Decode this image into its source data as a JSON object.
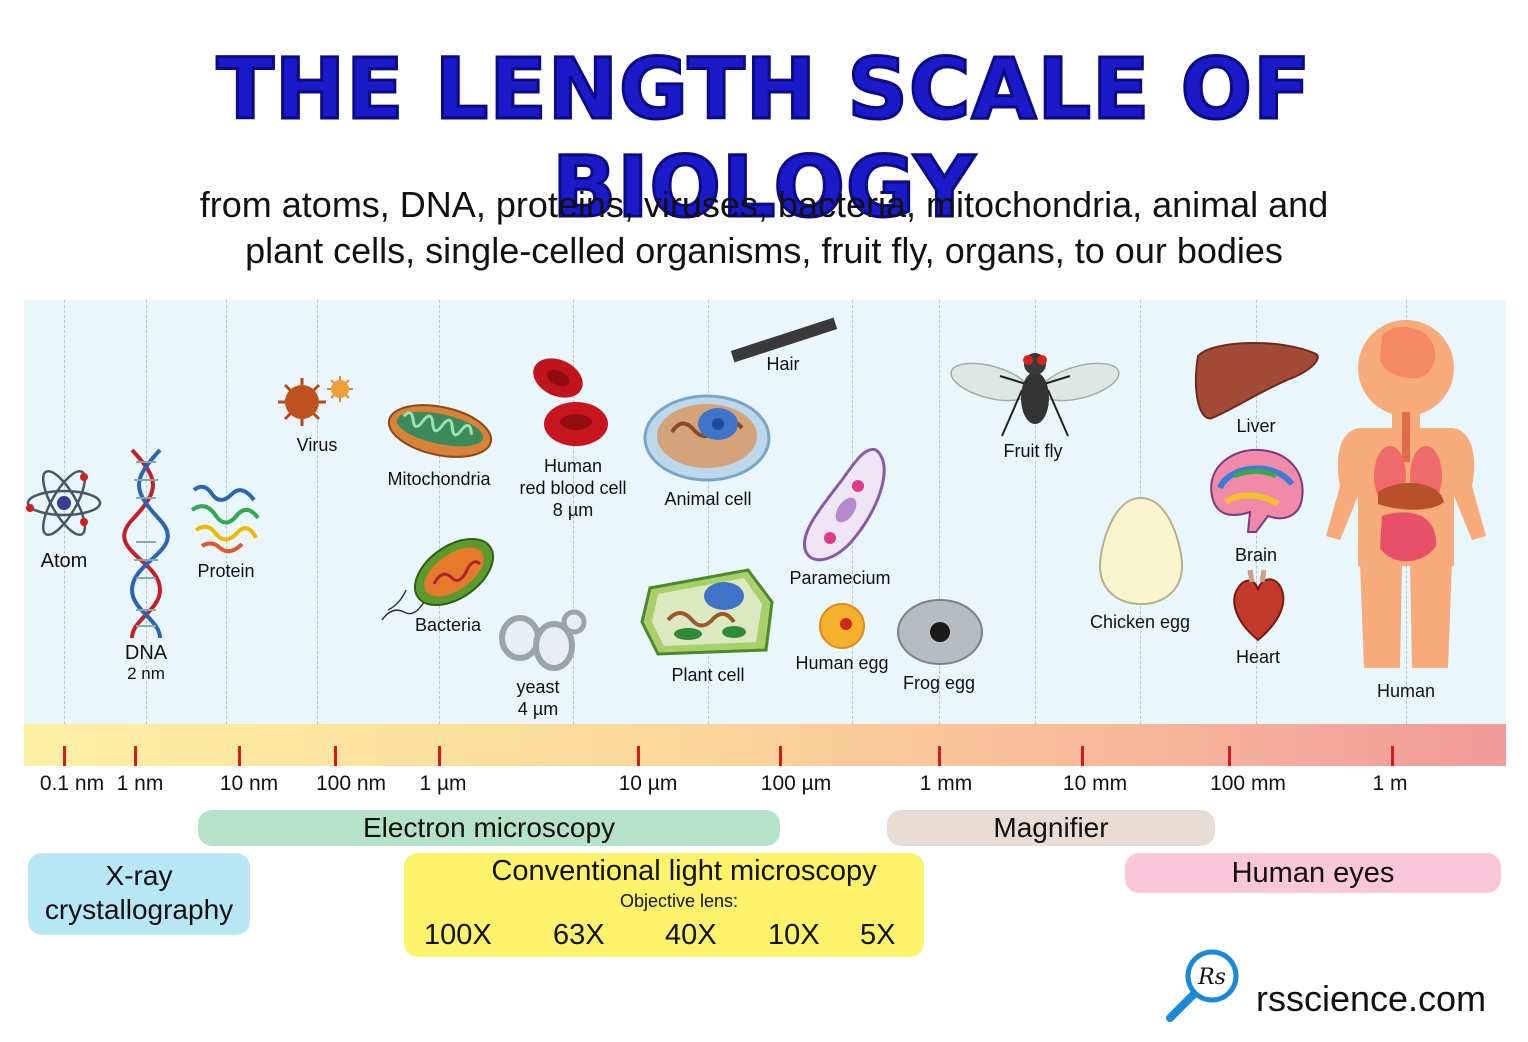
{
  "title": "THE LENGTH SCALE OF BIOLOGY",
  "subtitle_line1": "from atoms, DNA, proteins, viruses, bacteria, mitochondria, animal and",
  "subtitle_line2": "plant cells, single-celled organisms, fruit fly, organs, to our bodies",
  "colors": {
    "title": "#1a1ac8",
    "tick": "#d21c1c",
    "electron": "#b5e3c8",
    "xray": "#b7e6f5",
    "light": "#fdf36b",
    "magnifier": "#e8dcd3",
    "eyes": "#f9c6da"
  },
  "scale": {
    "ticks": [
      "0.1 nm",
      "1 nm",
      "10 nm",
      "100 nm",
      "1 µm",
      "10 µm",
      "100 µm",
      "1 mm",
      "10 mm",
      "100 mm",
      "1 m"
    ]
  },
  "items": {
    "atom": "Atom",
    "dna": "DNA",
    "dna_size": "2 nm",
    "protein": "Protein",
    "virus": "Virus",
    "mitochondria": "Mitochondria",
    "bacteria": "Bacteria",
    "rbc_line1": "Human",
    "rbc_line2": "red blood cell",
    "rbc_size": "8 µm",
    "yeast": "yeast",
    "yeast_size": "4 µm",
    "animal_cell": "Animal cell",
    "plant_cell": "Plant cell",
    "hair": "Hair",
    "paramecium": "Paramecium",
    "human_egg": "Human egg",
    "frog_egg": "Frog egg",
    "fruit_fly": "Fruit fly",
    "chicken_egg": "Chicken egg",
    "liver": "Liver",
    "brain": "Brain",
    "heart": "Heart",
    "human": "Human"
  },
  "methods": {
    "electron": "Electron microscopy",
    "magnifier": "Magnifier",
    "xray_line1": "X-ray",
    "xray_line2": "crystallography",
    "light": "Conventional light microscopy",
    "objective_caption": "Objective lens:",
    "lenses": [
      "100X",
      "63X",
      "40X",
      "10X",
      "5X"
    ],
    "eyes": "Human eyes"
  },
  "brand": {
    "logo_text": "Rs",
    "site": "rsscience.com"
  }
}
